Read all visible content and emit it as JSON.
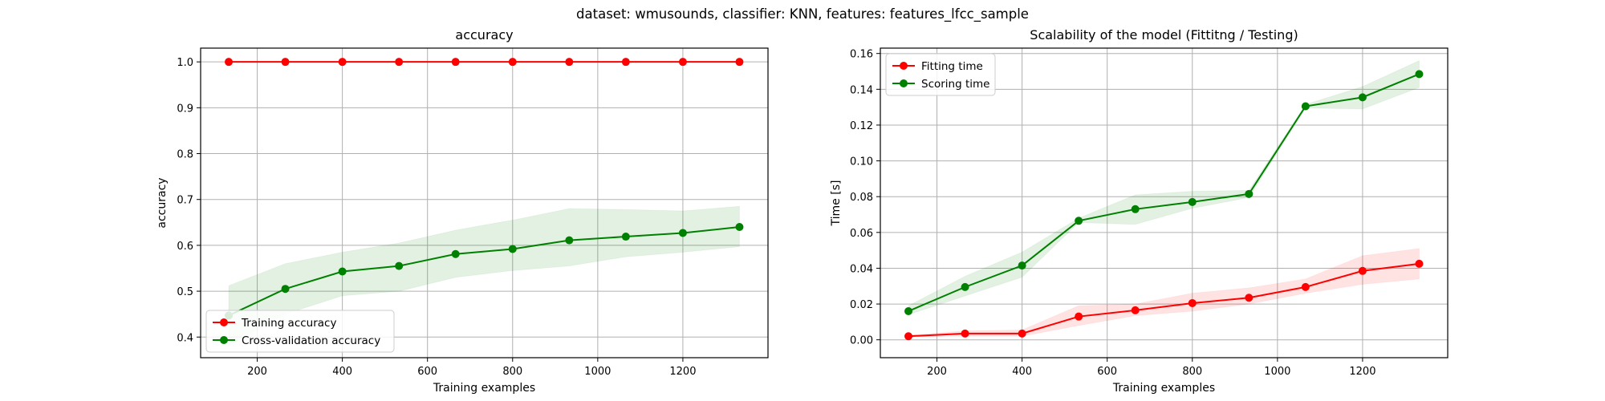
{
  "suptitle": "dataset: wmusounds, classifier: KNN, features: features_lfcc_sample",
  "chart_data": [
    {
      "type": "line",
      "title": "accuracy",
      "xlabel": "Training examples",
      "ylabel": "accuracy",
      "xlim": [
        67,
        1400
      ],
      "ylim": [
        0.355,
        1.03
      ],
      "xticks": [
        200,
        400,
        600,
        800,
        1000,
        1200
      ],
      "yticks": [
        0.4,
        0.5,
        0.6,
        0.7,
        0.8,
        0.9,
        1.0
      ],
      "grid": true,
      "legend": "lower-left",
      "x": [
        133,
        266,
        400,
        533,
        666,
        800,
        933,
        1066,
        1200,
        1333
      ],
      "series": [
        {
          "name": "Training accuracy",
          "color": "#ff0000",
          "values": [
            1.0,
            1.0,
            1.0,
            1.0,
            1.0,
            1.0,
            1.0,
            1.0,
            1.0,
            1.0
          ],
          "lower": [
            1.0,
            1.0,
            1.0,
            1.0,
            1.0,
            1.0,
            1.0,
            1.0,
            1.0,
            1.0
          ],
          "upper": [
            1.0,
            1.0,
            1.0,
            1.0,
            1.0,
            1.0,
            1.0,
            1.0,
            1.0,
            1.0
          ]
        },
        {
          "name": "Cross-validation accuracy",
          "color": "#008000",
          "values": [
            0.447,
            0.505,
            0.543,
            0.555,
            0.581,
            0.592,
            0.611,
            0.619,
            0.627,
            0.64
          ],
          "lower": [
            0.38,
            0.45,
            0.49,
            0.5,
            0.53,
            0.545,
            0.555,
            0.575,
            0.585,
            0.597
          ],
          "upper": [
            0.512,
            0.56,
            0.585,
            0.605,
            0.633,
            0.655,
            0.68,
            0.678,
            0.675,
            0.685
          ]
        }
      ]
    },
    {
      "type": "line",
      "title": "Scalability of the model (Fittitng / Testing)",
      "xlabel": "Training examples",
      "ylabel": "Time [s]",
      "xlim": [
        67,
        1400
      ],
      "ylim": [
        -0.01,
        0.163
      ],
      "xticks": [
        200,
        400,
        600,
        800,
        1000,
        1200
      ],
      "yticks": [
        0.0,
        0.02,
        0.04,
        0.06,
        0.08,
        0.1,
        0.12,
        0.14,
        0.16
      ],
      "grid": true,
      "legend": "top-left",
      "x": [
        133,
        266,
        400,
        533,
        666,
        800,
        933,
        1066,
        1200,
        1333
      ],
      "series": [
        {
          "name": "Fitting time",
          "color": "#ff0000",
          "values": [
            0.002,
            0.0035,
            0.0035,
            0.013,
            0.0165,
            0.0205,
            0.0235,
            0.0295,
            0.0385,
            0.0425
          ],
          "lower": [
            0.0015,
            0.002,
            0.002,
            0.008,
            0.0135,
            0.016,
            0.02,
            0.026,
            0.031,
            0.034
          ],
          "upper": [
            0.0025,
            0.005,
            0.0055,
            0.019,
            0.02,
            0.026,
            0.029,
            0.034,
            0.047,
            0.051
          ]
        },
        {
          "name": "Scoring time",
          "color": "#008000",
          "values": [
            0.016,
            0.0295,
            0.0415,
            0.0665,
            0.073,
            0.077,
            0.0815,
            0.1305,
            0.1355,
            0.1485
          ],
          "lower": [
            0.014,
            0.0245,
            0.035,
            0.0655,
            0.0645,
            0.0735,
            0.0795,
            0.1295,
            0.129,
            0.141
          ],
          "upper": [
            0.019,
            0.0355,
            0.049,
            0.068,
            0.081,
            0.083,
            0.0835,
            0.1315,
            0.1415,
            0.156
          ]
        }
      ]
    }
  ]
}
